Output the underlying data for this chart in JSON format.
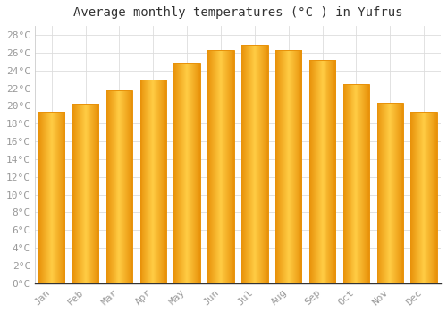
{
  "title": "Average monthly temperatures (°C ) in Yufrus",
  "months": [
    "Jan",
    "Feb",
    "Mar",
    "Apr",
    "May",
    "Jun",
    "Jul",
    "Aug",
    "Sep",
    "Oct",
    "Nov",
    "Dec"
  ],
  "values": [
    19.3,
    20.2,
    21.7,
    23.0,
    24.8,
    26.3,
    26.9,
    26.3,
    25.2,
    22.5,
    20.3,
    19.3
  ],
  "bar_color_edge": "#E8920A",
  "bar_color_center": "#FFCC44",
  "background_color": "#FFFFFF",
  "grid_color": "#DDDDDD",
  "text_color": "#999999",
  "title_color": "#333333",
  "ylim": [
    0,
    29
  ],
  "yticks": [
    0,
    2,
    4,
    6,
    8,
    10,
    12,
    14,
    16,
    18,
    20,
    22,
    24,
    26,
    28
  ],
  "title_fontsize": 10,
  "tick_fontsize": 8,
  "bar_width": 0.78
}
